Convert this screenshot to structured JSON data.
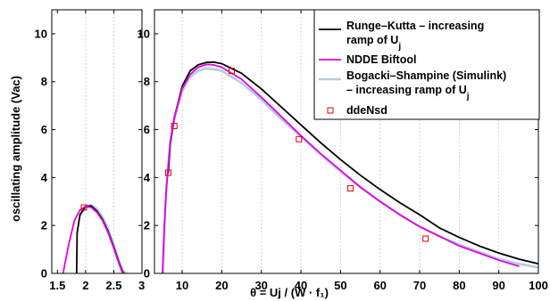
{
  "chart_data": {
    "type": "line",
    "ylabel": "oscillating amplitude (Vac)",
    "ylim": [
      0,
      11
    ],
    "yticks": [
      0,
      2,
      4,
      6,
      8,
      10
    ],
    "grid": true,
    "legend_position": "top-right",
    "panels": [
      {
        "name": "left",
        "xlabel": "",
        "xlim": [
          1.4,
          3
        ],
        "xticks": [
          1.5,
          2,
          2.5,
          3
        ],
        "xgrid": [
          2,
          2.5
        ],
        "series": [
          {
            "key": "rk",
            "color": "#000000",
            "x": [
              1.84,
              1.85,
              1.9,
              2.0,
              2.1,
              2.2,
              2.3,
              2.4,
              2.5,
              2.6,
              2.65,
              2.68
            ],
            "y": [
              0.0,
              1.7,
              2.45,
              2.8,
              2.82,
              2.6,
              2.25,
              1.75,
              1.1,
              0.4,
              0.1,
              0.0
            ]
          },
          {
            "key": "nd",
            "color": "#e600e6",
            "x": [
              1.6,
              1.7,
              1.8,
              1.9,
              2.0,
              2.1,
              2.2,
              2.3,
              2.4,
              2.5,
              2.6,
              2.65,
              2.68
            ],
            "y": [
              0.0,
              1.2,
              2.2,
              2.65,
              2.8,
              2.75,
              2.55,
              2.2,
              1.7,
              1.05,
              0.35,
              0.05,
              0.0
            ]
          },
          {
            "key": "bs",
            "color": "#b3cde3",
            "x": [
              1.9,
              2.0,
              2.1,
              2.2,
              2.3,
              2.4,
              2.5,
              2.6,
              2.68,
              2.72
            ],
            "y": [
              2.45,
              2.75,
              2.85,
              2.7,
              2.35,
              1.85,
              1.2,
              0.45,
              0.05,
              0.0
            ]
          },
          {
            "key": "dd",
            "color": "#e60000",
            "marker": true,
            "x": [
              1.97
            ],
            "y": [
              2.75
            ]
          }
        ]
      },
      {
        "name": "right",
        "xlabel": "θ = Uj / (W · f₁)",
        "xlim": [
          3,
          100
        ],
        "xticks": [
          10,
          20,
          30,
          40,
          50,
          60,
          70,
          80,
          90,
          100
        ],
        "xgrid": [
          10,
          20,
          30,
          40,
          50,
          60,
          70,
          80,
          90
        ],
        "series": [
          {
            "key": "rk",
            "color": "#000000",
            "x": [
              6.5,
              7,
              8,
              10,
              12,
              14,
              16,
              18,
              20,
              25,
              30,
              35,
              40,
              45,
              50,
              55,
              60,
              65,
              70,
              75,
              80,
              85,
              90,
              95,
              100
            ],
            "y": [
              4.2,
              5.4,
              6.5,
              7.8,
              8.45,
              8.7,
              8.8,
              8.82,
              8.75,
              8.35,
              7.7,
              6.95,
              6.2,
              5.45,
              4.75,
              4.1,
              3.5,
              2.95,
              2.45,
              1.9,
              1.5,
              1.15,
              0.85,
              0.6,
              0.4
            ]
          },
          {
            "key": "nd",
            "color": "#e600e6",
            "x": [
              5,
              5.5,
              6,
              7,
              8,
              10,
              12,
              14,
              16,
              18,
              20,
              25,
              30,
              35,
              40,
              45,
              50,
              55,
              60,
              65,
              70,
              75,
              80,
              85,
              90,
              95
            ],
            "y": [
              0.0,
              2.0,
              3.5,
              5.5,
              6.5,
              7.7,
              8.3,
              8.6,
              8.72,
              8.7,
              8.6,
              8.1,
              7.35,
              6.55,
              5.75,
              5.0,
              4.3,
              3.6,
              3.0,
              2.45,
              1.95,
              1.55,
              1.15,
              0.85,
              0.55,
              0.3
            ]
          },
          {
            "key": "bs",
            "color": "#b3cde3",
            "x": [
              5.2,
              5.6,
              6,
              7,
              8,
              10,
              12,
              14,
              16,
              18,
              20,
              25,
              30,
              35,
              40,
              45,
              50,
              55,
              60,
              65,
              70,
              75,
              80,
              85,
              90,
              95,
              100
            ],
            "y": [
              0.0,
              2.2,
              3.6,
              5.5,
              6.45,
              7.6,
              8.2,
              8.45,
              8.55,
              8.52,
              8.45,
              7.95,
              7.25,
              6.45,
              5.7,
              4.95,
              4.25,
              3.6,
              3.0,
              2.45,
              1.95,
              1.55,
              1.2,
              0.9,
              0.6,
              0.4,
              0.25
            ]
          },
          {
            "key": "dd",
            "color": "#e60000",
            "marker": true,
            "x": [
              6.5,
              8,
              22.5,
              39.5,
              52.5,
              71.5
            ],
            "y": [
              4.2,
              6.15,
              8.45,
              5.6,
              3.55,
              1.45
            ]
          }
        ]
      }
    ],
    "legend": [
      {
        "key": "rk",
        "color": "#000000",
        "lines": [
          "Runge–Kutta – increasing",
          "ramp of U"
        ],
        "sub": "j"
      },
      {
        "key": "nd",
        "color": "#e600e6",
        "lines": [
          "NDDE Biftool"
        ]
      },
      {
        "key": "bs",
        "color": "#b3cde3",
        "lines": [
          "Bogacki–Shampine (Simulink)",
          "– increasing ramp of U"
        ],
        "sub": "j"
      },
      {
        "key": "dd",
        "color": "#e60000",
        "lines": [
          "ddeNsd"
        ],
        "marker": true
      }
    ]
  }
}
